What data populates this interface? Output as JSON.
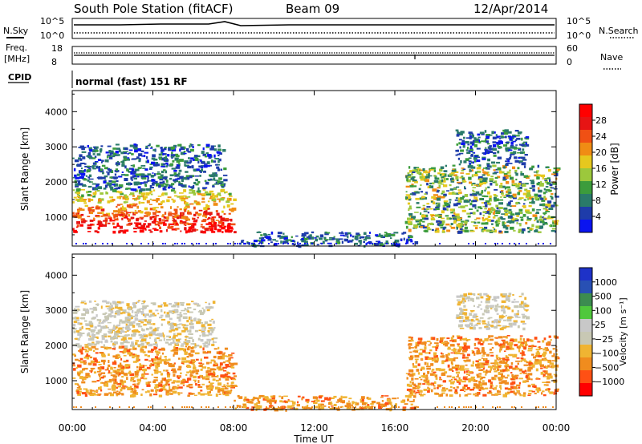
{
  "header": {
    "title": "South Pole Station (fitACF)",
    "beam": "Beam 09",
    "date": "12/Apr/2014"
  },
  "param_panels": {
    "nsky_label": "N.Sky",
    "nsky_ticks": [
      "10^5",
      "10^0"
    ],
    "nsearch_label": "N.Search",
    "freq_label_1": "Freq.",
    "freq_label_2": "[MHz]",
    "freq_ticks": [
      "18",
      "8"
    ],
    "nave_label": "Nave",
    "nave_ticks": [
      "60",
      "0"
    ],
    "cpid_label": "CPID",
    "cpid_text": "normal (fast) 151 RF"
  },
  "x_axis": {
    "label": "Time UT",
    "ticks": [
      "00:00",
      "04:00",
      "08:00",
      "12:00",
      "16:00",
      "20:00",
      "00:00"
    ]
  },
  "colors": {
    "power_scale": [
      "#0a14f0",
      "#1e3caa",
      "#2a7a6a",
      "#3c9c3c",
      "#9cc83c",
      "#e6c81e",
      "#f08c14",
      "#f05014",
      "#e61414",
      "#ff0000"
    ],
    "velocity_scale": [
      "#ff0000",
      "#ff5014",
      "#f08c1e",
      "#f0b432",
      "#c8c8b4",
      "#c8c8c8",
      "#50c83c",
      "#3c8c50",
      "#2850b4",
      "#1e32c8"
    ]
  },
  "chart_data": [
    {
      "type": "heatmap",
      "name": "power",
      "xlabel": "Time UT",
      "ylabel": "Slant Range [km]",
      "x_range_hours": [
        0,
        24
      ],
      "ylim": [
        180,
        4600
      ],
      "y_ticks": [
        1000,
        2000,
        3000,
        4000
      ],
      "colorbar": {
        "label": "Power [dB]",
        "ticks": [
          "28",
          "24",
          "20",
          "16",
          "12",
          "8",
          "4"
        ],
        "range": [
          0,
          32
        ]
      },
      "regions": [
        {
          "t0": 0.0,
          "t1": 8.0,
          "r0": 600,
          "r1": 1800,
          "level": "high"
        },
        {
          "t0": 0.0,
          "t1": 7.5,
          "r0": 1800,
          "r1": 3100,
          "level": "low"
        },
        {
          "t0": 8.0,
          "t1": 9.0,
          "r0": 200,
          "r1": 400,
          "level": "low"
        },
        {
          "t0": 9.0,
          "t1": 17.0,
          "r0": 200,
          "r1": 600,
          "level": "low"
        },
        {
          "t0": 16.5,
          "t1": 24.0,
          "r0": 600,
          "r1": 2500,
          "level": "mid"
        },
        {
          "t0": 19.0,
          "t1": 22.5,
          "r0": 2500,
          "r1": 3500,
          "level": "low"
        }
      ]
    },
    {
      "type": "heatmap",
      "name": "velocity",
      "xlabel": "Time UT",
      "ylabel": "Slant Range [km]",
      "x_range_hours": [
        0,
        24
      ],
      "ylim": [
        180,
        4600
      ],
      "y_ticks": [
        1000,
        2000,
        3000,
        4000
      ],
      "colorbar": {
        "label": "Velocity [m s⁻¹]",
        "ticks": [
          "1000",
          "500",
          "100",
          "25",
          "−25",
          "−100",
          "−500",
          "−1000"
        ]
      },
      "regions": [
        {
          "t0": 0.0,
          "t1": 8.0,
          "r0": 600,
          "r1": 2000,
          "level": "negative"
        },
        {
          "t0": 0.0,
          "t1": 7.0,
          "r0": 2000,
          "r1": 3300,
          "level": "near-zero"
        },
        {
          "t0": 8.0,
          "t1": 17.0,
          "r0": 200,
          "r1": 600,
          "level": "negative"
        },
        {
          "t0": 16.5,
          "t1": 24.0,
          "r0": 600,
          "r1": 2300,
          "level": "negative"
        },
        {
          "t0": 19.0,
          "t1": 22.5,
          "r0": 2500,
          "r1": 3500,
          "level": "near-zero"
        }
      ]
    }
  ]
}
